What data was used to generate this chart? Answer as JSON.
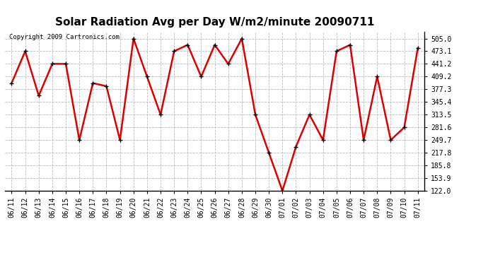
{
  "title": "Solar Radiation Avg per Day W/m2/minute 20090711",
  "copyright": "Copyright 2009 Cartronics.com",
  "x_labels": [
    "06/11",
    "06/12",
    "06/13",
    "06/14",
    "06/15",
    "06/16",
    "06/17",
    "06/18",
    "06/19",
    "06/20",
    "06/21",
    "06/22",
    "06/23",
    "06/24",
    "06/25",
    "06/26",
    "06/27",
    "06/28",
    "06/29",
    "06/30",
    "07/01",
    "07/02",
    "07/03",
    "07/04",
    "07/05",
    "07/06",
    "07/07",
    "07/08",
    "07/09",
    "07/10",
    "07/11"
  ],
  "y_values": [
    393.0,
    473.1,
    361.3,
    441.2,
    441.2,
    249.7,
    393.0,
    385.0,
    249.7,
    505.0,
    409.2,
    313.5,
    473.1,
    489.0,
    409.2,
    489.0,
    441.2,
    505.0,
    313.5,
    217.8,
    122.0,
    233.0,
    313.5,
    249.7,
    473.1,
    489.0,
    249.7,
    409.2,
    249.7,
    281.6,
    481.0
  ],
  "line_color": "#dd0000",
  "marker_color": "#000000",
  "bg_color": "#ffffff",
  "grid_color": "#bbbbbb",
  "ylim_min": 122.0,
  "ylim_max": 521.9,
  "yticks": [
    122.0,
    153.9,
    185.8,
    217.8,
    249.7,
    281.6,
    313.5,
    345.4,
    377.3,
    409.2,
    441.2,
    473.1,
    505.0
  ],
  "title_fontsize": 11,
  "copyright_fontsize": 6.5,
  "tick_fontsize": 7
}
